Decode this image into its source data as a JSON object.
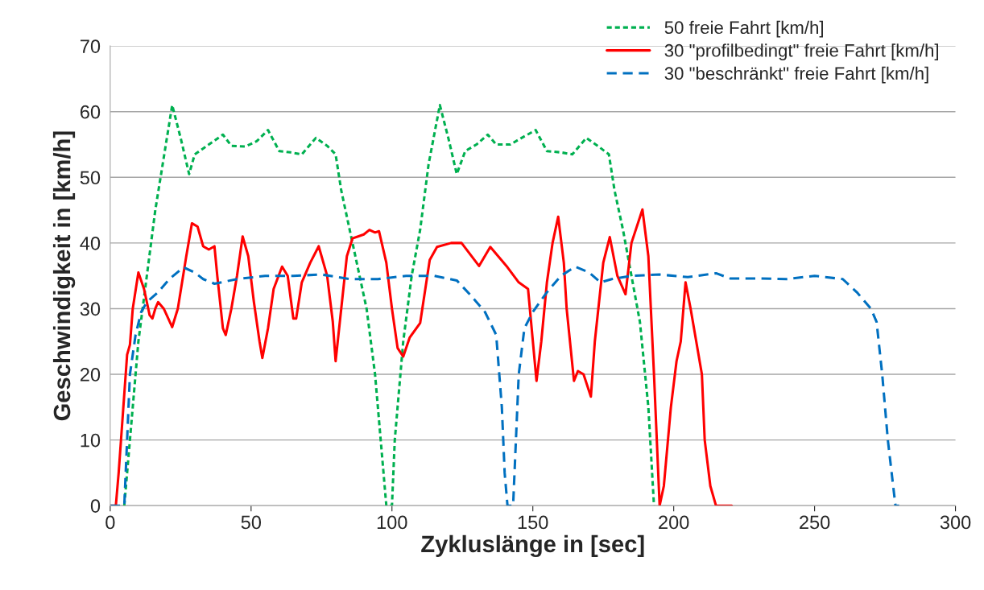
{
  "chart_data": {
    "type": "line",
    "xlabel": "Zykluslänge in [sec]",
    "ylabel": "Geschwindigkeit in [km/h]",
    "xlim": [
      0,
      300
    ],
    "xticks": [
      0,
      50,
      100,
      150,
      200,
      250,
      300
    ],
    "ylim": [
      0,
      70
    ],
    "yticks": [
      0,
      10,
      20,
      30,
      40,
      50,
      60,
      70
    ],
    "grid": "y",
    "legend": "top right",
    "marker": "none",
    "series": [
      {
        "name": "50 freie Fahrt [km/h]",
        "color": "#00b050",
        "line_style": "dotted",
        "x": [
          5,
          8,
          10,
          13,
          16,
          19,
          22,
          25,
          28,
          30,
          35,
          40,
          43,
          48,
          52,
          56,
          60,
          64,
          68,
          73,
          77,
          80,
          82,
          85,
          88,
          91,
          94,
          97,
          98,
          100,
          101,
          104,
          107,
          110,
          113,
          117,
          120,
          123,
          126,
          130,
          134,
          137,
          142,
          146,
          151,
          155,
          160,
          164,
          169,
          173,
          177,
          179,
          182,
          185,
          188,
          191,
          193
        ],
        "values": [
          0,
          15,
          25,
          35,
          45,
          53,
          61,
          56,
          50.5,
          53.5,
          55,
          56.5,
          54.8,
          54.7,
          55.5,
          57.2,
          54,
          53.8,
          53.5,
          56,
          54.8,
          53.5,
          48,
          42,
          36,
          30,
          20,
          5,
          0,
          0,
          10,
          25,
          35,
          42,
          52,
          61,
          56,
          50.5,
          54,
          55,
          56.5,
          55,
          55,
          56,
          57.2,
          54,
          53.8,
          53.5,
          56,
          54.8,
          53.5,
          48,
          42,
          35,
          28,
          15,
          0
        ]
      },
      {
        "name": "30 \"profilbedingt\" freie Fahrt [km/h]",
        "color": "#ff0000",
        "line_style": "solid",
        "x": [
          0,
          2,
          3,
          5,
          6,
          7,
          8,
          10,
          12,
          14,
          15,
          16,
          17,
          19,
          22,
          24,
          27,
          29,
          31,
          33,
          35,
          37,
          38,
          40,
          41,
          43,
          45,
          47,
          49,
          51,
          53,
          54,
          56,
          58,
          61,
          63,
          65,
          66,
          68,
          71,
          74,
          77,
          79,
          80,
          82,
          84,
          86,
          88,
          90,
          92,
          94,
          95.4,
          98,
          100,
          102,
          104,
          106.3,
          110,
          113.4,
          116,
          121,
          124.7,
          130.9,
          134.9,
          141,
          145,
          148.3,
          151.3,
          153,
          155,
          157,
          159,
          161,
          162,
          164.6,
          166,
          168,
          170.6,
          172,
          175,
          177.3,
          180,
          182.9,
          185,
          188.9,
          191,
          193,
          195,
          196.5,
          199,
          201,
          202.5,
          204.2,
          206,
          208,
          210,
          211,
          213,
          215,
          220.6
        ],
        "values": [
          0,
          0,
          5,
          17,
          23,
          24.5,
          30,
          35.5,
          33,
          29,
          28.5,
          30,
          31,
          30,
          27.2,
          30,
          38,
          43,
          42.5,
          39.5,
          39,
          39.5,
          35,
          27,
          26,
          30,
          35,
          41,
          38,
          31,
          25,
          22.5,
          27,
          33,
          36.4,
          35,
          28.5,
          28.5,
          34,
          37,
          39.5,
          35,
          28,
          22,
          30,
          38,
          40.7,
          41,
          41.3,
          42,
          41.6,
          41.8,
          37,
          30,
          24,
          22.7,
          25.6,
          27.8,
          37.4,
          39.4,
          40,
          40,
          36.5,
          39.4,
          36.3,
          34,
          33,
          19,
          25,
          34,
          40,
          44,
          37,
          30,
          19,
          20.5,
          20,
          16.6,
          25,
          37,
          40.9,
          35,
          32.2,
          40,
          45.1,
          38,
          20,
          0,
          3,
          15,
          22,
          25,
          34,
          30,
          25,
          20,
          10,
          3,
          0,
          0
        ]
      },
      {
        "name": "30 \"beschränkt\" freie Fahrt [km/h]",
        "color": "#0070c0",
        "line_style": "dashed",
        "x": [
          0,
          5,
          6,
          7,
          9,
          11,
          13,
          17,
          21,
          26,
          30,
          33,
          37,
          45,
          55,
          65,
          75,
          85,
          95,
          105,
          115,
          123,
          128,
          133,
          137,
          139,
          140,
          141,
          143,
          144,
          145,
          147,
          150,
          155,
          160,
          165,
          170,
          174,
          178,
          185,
          195,
          205,
          215,
          220,
          230,
          240,
          250,
          260,
          265,
          270,
          272,
          274,
          276,
          278.7,
          280
        ],
        "values": [
          0,
          0,
          10,
          20,
          26,
          29.5,
          31,
          32.5,
          34.5,
          36.3,
          35.5,
          34.5,
          33.8,
          34.5,
          35,
          35,
          35.2,
          34.5,
          34.5,
          35,
          35,
          34.3,
          32,
          29.5,
          26,
          15,
          5,
          0,
          0,
          10,
          20,
          27,
          29.5,
          32.5,
          35,
          36.4,
          35.5,
          34,
          34.5,
          35,
          35.2,
          34.8,
          35.4,
          34.6,
          34.6,
          34.5,
          35,
          34.5,
          32.5,
          30,
          28,
          20,
          10,
          0,
          0
        ]
      }
    ]
  }
}
